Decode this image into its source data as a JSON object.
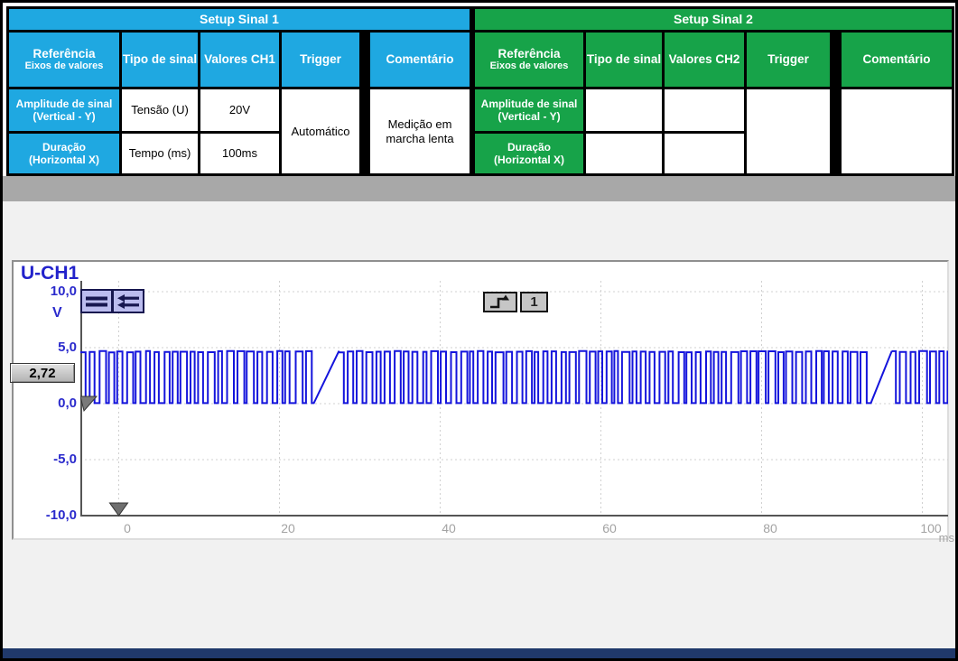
{
  "colors": {
    "sinal1_accent": "#1FA8E1",
    "sinal2_accent": "#17A349",
    "band_gray": "#A8A8A8",
    "lower_bg": "#F1F1F1",
    "bottom_bar": "#20396B",
    "waveform_blue": "#1414DC",
    "axis_label_blue": "#2A2ACC",
    "tick_gray": "#A3A3A3"
  },
  "setup_tables": [
    {
      "title": "Setup Sinal 1",
      "col_referencia": "Referência",
      "col_referencia_sub": "Eixos de valores",
      "col_tipo": "Tipo de sinal",
      "col_valores": "Valores CH1",
      "col_trigger": "Trigger",
      "col_comentario": "Comentário",
      "rows": [
        {
          "label": "Amplitude de sinal",
          "label_sub": "(Vertical - Y)",
          "tipo": "Tensão (U)",
          "valor": "20V"
        },
        {
          "label": "Duração",
          "label_sub": "(Horizontal X)",
          "tipo": "Tempo (ms)",
          "valor": "100ms"
        }
      ],
      "trigger_value": "Automático",
      "comentario_value": "Medição em marcha lenta"
    },
    {
      "title": "Setup Sinal 2",
      "col_referencia": "Referência",
      "col_referencia_sub": "Eixos de valores",
      "col_tipo": "Tipo de sinal",
      "col_valores": "Valores CH2",
      "col_trigger": "Trigger",
      "col_comentario": "Comentário",
      "rows": [
        {
          "label": "Amplitude de sinal",
          "label_sub": "(Vertical - Y)",
          "tipo": "",
          "valor": ""
        },
        {
          "label": "Duração",
          "label_sub": "(Horizontal X)",
          "tipo": "",
          "valor": ""
        }
      ],
      "trigger_value": "",
      "comentario_value": ""
    }
  ],
  "scope": {
    "channel_label": "U-CH1",
    "y_unit": "V",
    "x_unit": "ms",
    "measured_value": "2,72",
    "trigger_channel": "1",
    "y_ticks": [
      "10,0",
      "5,0",
      "0,0",
      "-5,0",
      "-10,0"
    ],
    "x_ticks": [
      "0",
      "20",
      "40",
      "60",
      "80",
      "100"
    ]
  },
  "chart_data": {
    "type": "line",
    "title": "U-CH1 voltage vs time (idle measurement)",
    "xlabel": "ms",
    "ylabel": "V",
    "xlim": [
      -4.8,
      103.2
    ],
    "ylim": [
      -10,
      10
    ],
    "x_tick_values": [
      0,
      20,
      40,
      60,
      80,
      100
    ],
    "y_tick_values": [
      10,
      5,
      0,
      -5,
      -10
    ],
    "grid": true,
    "signal": {
      "description": "Digital square pulse train between 0 V and ~4.7 V with reference gaps (signal held high), crank-style pattern at idle",
      "high_v": 4.7,
      "low_v": 0.05,
      "period_ms": 1.15,
      "duty_high_mean": 0.58,
      "gaps_high_ms": [
        [
          24.2,
          27.4
        ],
        [
          93.0,
          96.2
        ]
      ],
      "trigger_level_v": 0,
      "trigger_time_ms": 0
    }
  }
}
